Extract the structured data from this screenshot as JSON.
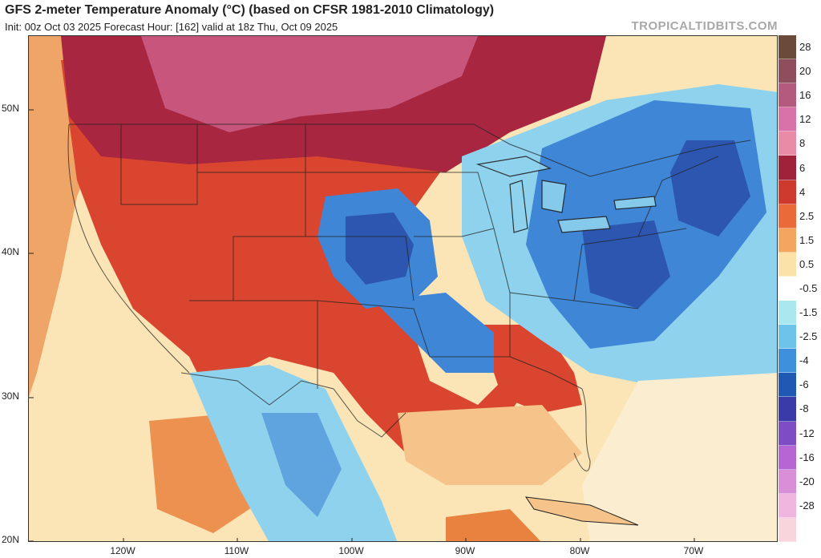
{
  "header": {
    "title": "GFS 2-meter Temperature Anomaly (°C) (based on CFSR 1981-2010 Climatology)",
    "subtitle": "Init: 00z Oct 03 2025   Forecast Hour: [162]   valid at 18z Thu, Oct 09 2025",
    "watermark": "TROPICALTIDBITS.COM"
  },
  "axes": {
    "lat_labels": [
      "50N",
      "40N",
      "30N",
      "20N"
    ],
    "lon_labels": [
      "120W",
      "110W",
      "100W",
      "90W",
      "80W",
      "70W"
    ]
  },
  "colorbar": {
    "levels": [
      {
        "label": "28",
        "color": "#6b4a3a"
      },
      {
        "label": "20",
        "color": "#8e4e5e"
      },
      {
        "label": "16",
        "color": "#b45a7e"
      },
      {
        "label": "12",
        "color": "#d872a8"
      },
      {
        "label": "8",
        "color": "#e98aa6"
      },
      {
        "label": "6",
        "color": "#a0223a"
      },
      {
        "label": "4",
        "color": "#cf3a2e"
      },
      {
        "label": "2.5",
        "color": "#ea6a3a"
      },
      {
        "label": "1.5",
        "color": "#f4a55e"
      },
      {
        "label": "0.5",
        "color": "#fbe2a8"
      },
      {
        "label": "-0.5",
        "color": "#ffffff"
      },
      {
        "label": "-1.5",
        "color": "#a8e8ee"
      },
      {
        "label": "-2.5",
        "color": "#6ec3ea"
      },
      {
        "label": "-4",
        "color": "#3e8fdc"
      },
      {
        "label": "-6",
        "color": "#2058b4"
      },
      {
        "label": "-8",
        "color": "#3a3aa8"
      },
      {
        "label": "-12",
        "color": "#7e4cc4"
      },
      {
        "label": "-16",
        "color": "#b566d4"
      },
      {
        "label": "-20",
        "color": "#d98ed8"
      },
      {
        "label": "-28",
        "color": "#f0b6e0"
      },
      {
        "label": "",
        "color": "#f8d4dc"
      }
    ]
  },
  "map": {
    "background_color": "#fbe5b6",
    "warm_color": "#d9452f",
    "hot_color": "#a82640",
    "very_hot_color": "#c8567c",
    "cool_color": "#8ed2ee",
    "cold_color": "#3f86d6",
    "very_cold_color": "#2c56b0"
  }
}
